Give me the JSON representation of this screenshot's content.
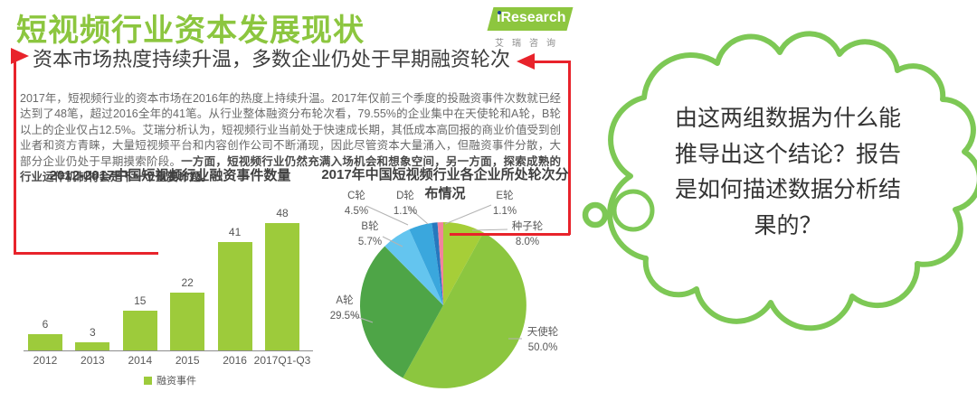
{
  "header": {
    "title": "短视频行业资本发展现状",
    "title_color": "#8CC63F",
    "logo": {
      "brand": "iResearch",
      "caption": "艾瑞咨询"
    },
    "subtitle": "资本市场热度持续升温，多数企业仍处于早期融资轮次"
  },
  "body_text": {
    "normal": "2017年，短视频行业的资本市场在2016年的热度上持续升温。2017年仅前三个季度的投融资事件次数就已经达到了48笔，超过2016全年的41笔。从行业整体融资分布轮次看，79.55%的企业集中在天使轮和A轮，B轮以上的企业仅占12.5%。艾瑞分析认为，短视频行业当前处于快速成长期，其低成本高回报的商业价值受到创业者和资方青睐，大量短视频平台和内容创作公司不断涌现，因此尽管资本大量涌入，但融资事件分散，大部分企业仍处于早期摸索阶段。",
    "bold": "一方面，短视频行业仍然充满入场机会和想象空间，另一方面，探索成熟的行业运作机制将会是下一个重要命题。"
  },
  "chart_data": [
    {
      "type": "bar",
      "title": "2012-2017中国短视频行业融资事件数量",
      "categories": [
        "2012",
        "2013",
        "2014",
        "2015",
        "2016",
        "2017Q1-Q3"
      ],
      "values": [
        6,
        3,
        15,
        22,
        41,
        48
      ],
      "series_name": "融资事件",
      "bar_color": "#9DCB3B",
      "ylim": [
        0,
        50
      ],
      "grid": false,
      "legend_position": "bottom"
    },
    {
      "type": "pie",
      "title": "2017年中国短视频行业各企业所处轮次分布情况",
      "start_angle": 0,
      "direction": "clockwise",
      "slices": [
        {
          "label": "种子轮",
          "value": 8.0,
          "pct_label": "8.0%",
          "color": "#A6CE38"
        },
        {
          "label": "天使轮",
          "value": 50.0,
          "pct_label": "50.0%",
          "color": "#8CC63F"
        },
        {
          "label": "A轮",
          "value": 29.5,
          "pct_label": "29.5%",
          "color": "#4EA547"
        },
        {
          "label": "B轮",
          "value": 5.7,
          "pct_label": "5.7%",
          "color": "#64C5EF"
        },
        {
          "label": "C轮",
          "value": 4.5,
          "pct_label": "4.5%",
          "color": "#3AA7DD"
        },
        {
          "label": "D轮",
          "value": 1.1,
          "pct_label": "1.1%",
          "color": "#2678BE"
        },
        {
          "label": "E轮",
          "value": 1.1,
          "pct_label": "1.1%",
          "color": "#F2839D"
        }
      ]
    }
  ],
  "annotation": {
    "bubble_text": "由这两组数据为什么能推导出这个结论？报告是如何描述数据分析结果的？",
    "bubble_color": "#7DC855",
    "red_color": "#E8232B"
  }
}
